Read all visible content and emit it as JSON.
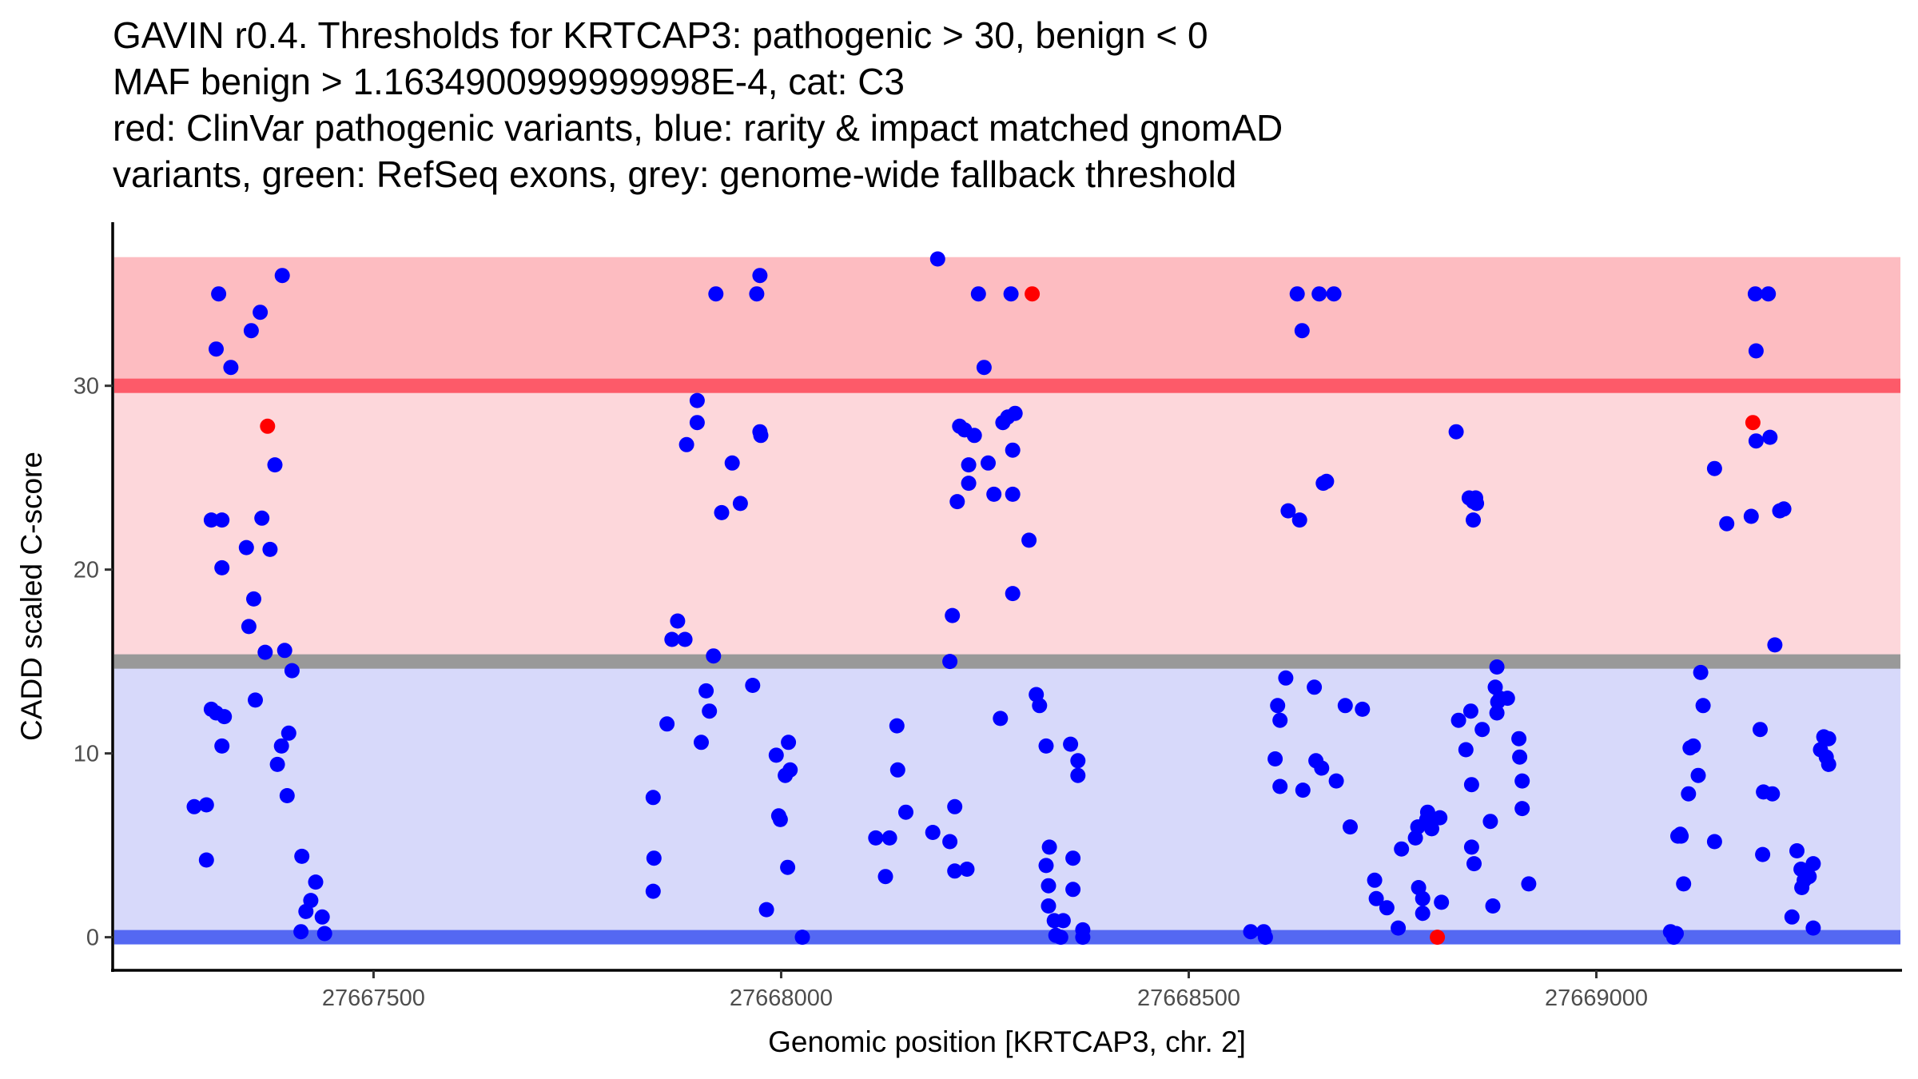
{
  "chart_data": {
    "type": "scatter",
    "title": [
      "GAVIN r0.4. Thresholds for KRTCAP3: pathogenic > 30, benign < 0",
      "MAF benign > 1.1634900999999998E-4, cat: C3",
      "red: ClinVar pathogenic variants, blue: rarity & impact matched gnomAD",
      "variants, green: RefSeq exons, grey: genome-wide fallback threshold"
    ],
    "xlabel": "Genomic position [KRTCAP3, chr. 2]",
    "ylabel": "CADD scaled C-score",
    "xlim": [
      27667180,
      27669373
    ],
    "ylim": [
      -1.8,
      38.9
    ],
    "x_ticks": [
      27667500,
      27668000,
      27668500,
      27669000
    ],
    "x_tick_labels": [
      "27667500",
      "27668000",
      "27668500",
      "27669000"
    ],
    "y_ticks": [
      0,
      10,
      20,
      30
    ],
    "y_tick_labels": [
      "0",
      "10",
      "20",
      "30"
    ],
    "grid": false,
    "legend": "none",
    "bands": [
      {
        "name": "pathogenic-region",
        "from": 30,
        "to": 37,
        "color": "#fdbcc1"
      },
      {
        "name": "intermediate-region",
        "from": 15,
        "to": 30,
        "color": "#fdd7db"
      },
      {
        "name": "benign-region",
        "from": 0,
        "to": 15,
        "color": "#d7d9fa"
      }
    ],
    "threshold_lines": [
      {
        "name": "pathogenic-threshold",
        "value": 30,
        "color": "#fd5a69"
      },
      {
        "name": "genome-wide-fallback-threshold",
        "value": 15,
        "color": "#999999"
      },
      {
        "name": "benign-threshold",
        "value": 0,
        "color": "#5468f2"
      }
    ],
    "series": [
      {
        "name": "ClinVar pathogenic variants",
        "color": "#ff0000",
        "points": [
          [
            27667370,
            27.8
          ],
          [
            27668308,
            35.0
          ],
          [
            27668805,
            0.0
          ],
          [
            27669192,
            28.0
          ]
        ]
      },
      {
        "name": "rarity & impact matched gnomAD variants",
        "color": "#0000ff",
        "points": [
          [
            27667310,
            35.0
          ],
          [
            27667307,
            32.0
          ],
          [
            27667325,
            31.0
          ],
          [
            27667350,
            33.0
          ],
          [
            27667361,
            34.0
          ],
          [
            27667388,
            36.0
          ],
          [
            27667379,
            25.7
          ],
          [
            27667301,
            22.7
          ],
          [
            27667314,
            22.7
          ],
          [
            27667363,
            22.8
          ],
          [
            27667344,
            21.2
          ],
          [
            27667373,
            21.1
          ],
          [
            27667314,
            20.1
          ],
          [
            27667353,
            18.4
          ],
          [
            27667347,
            16.9
          ],
          [
            27667367,
            15.5
          ],
          [
            27667391,
            15.6
          ],
          [
            27667400,
            14.5
          ],
          [
            27667301,
            12.4
          ],
          [
            27667307,
            12.2
          ],
          [
            27667317,
            12.0
          ],
          [
            27667355,
            12.9
          ],
          [
            27667396,
            11.1
          ],
          [
            27667387,
            10.4
          ],
          [
            27667382,
            9.4
          ],
          [
            27667314,
            10.4
          ],
          [
            27667280,
            7.1
          ],
          [
            27667295,
            7.2
          ],
          [
            27667394,
            7.7
          ],
          [
            27667295,
            4.2
          ],
          [
            27667412,
            4.4
          ],
          [
            27667429,
            3.0
          ],
          [
            27667423,
            2.0
          ],
          [
            27667417,
            1.4
          ],
          [
            27667437,
            1.1
          ],
          [
            27667411,
            0.3
          ],
          [
            27667440,
            0.2
          ],
          [
            27667843,
            7.6
          ],
          [
            27667844,
            4.3
          ],
          [
            27667843,
            2.5
          ],
          [
            27667860,
            11.6
          ],
          [
            27667866,
            16.2
          ],
          [
            27667873,
            17.2
          ],
          [
            27667882,
            16.2
          ],
          [
            27667884,
            26.8
          ],
          [
            27667897,
            29.2
          ],
          [
            27667897,
            28.0
          ],
          [
            27667908,
            13.4
          ],
          [
            27667912,
            12.3
          ],
          [
            27667902,
            10.6
          ],
          [
            27667917,
            15.3
          ],
          [
            27667920,
            35.0
          ],
          [
            27667927,
            23.1
          ],
          [
            27667940,
            25.8
          ],
          [
            27667950,
            23.6
          ],
          [
            27667965,
            13.7
          ],
          [
            27667970,
            35.0
          ],
          [
            27667974,
            36.0
          ],
          [
            27667974,
            27.5
          ],
          [
            27667975,
            27.3
          ],
          [
            27667982,
            1.5
          ],
          [
            27667994,
            9.9
          ],
          [
            27667997,
            6.6
          ],
          [
            27667999,
            6.4
          ],
          [
            27668005,
            8.8
          ],
          [
            27668009,
            10.6
          ],
          [
            27668008,
            3.8
          ],
          [
            27668011,
            9.1
          ],
          [
            27668026,
            0.0
          ],
          [
            27668116,
            5.4
          ],
          [
            27668133,
            5.4
          ],
          [
            27668128,
            3.3
          ],
          [
            27668142,
            11.5
          ],
          [
            27668143,
            9.1
          ],
          [
            27668153,
            6.8
          ],
          [
            27668186,
            5.7
          ],
          [
            27668192,
            36.9
          ],
          [
            27668207,
            5.2
          ],
          [
            27668207,
            15.0
          ],
          [
            27668210,
            17.5
          ],
          [
            27668213,
            7.1
          ],
          [
            27668213,
            3.6
          ],
          [
            27668216,
            23.7
          ],
          [
            27668219,
            27.8
          ],
          [
            27668225,
            27.6
          ],
          [
            27668228,
            3.7
          ],
          [
            27668230,
            25.7
          ],
          [
            27668230,
            24.7
          ],
          [
            27668237,
            27.3
          ],
          [
            27668242,
            35.0
          ],
          [
            27668249,
            31.0
          ],
          [
            27668254,
            25.8
          ],
          [
            27668261,
            24.1
          ],
          [
            27668269,
            11.9
          ],
          [
            27668272,
            28.0
          ],
          [
            27668278,
            28.3
          ],
          [
            27668282,
            35.0
          ],
          [
            27668284,
            26.5
          ],
          [
            27668284,
            24.1
          ],
          [
            27668284,
            18.7
          ],
          [
            27668287,
            28.5
          ],
          [
            27668304,
            21.6
          ],
          [
            27668313,
            13.2
          ],
          [
            27668317,
            12.6
          ],
          [
            27668325,
            10.4
          ],
          [
            27668329,
            4.9
          ],
          [
            27668325,
            3.9
          ],
          [
            27668328,
            2.8
          ],
          [
            27668328,
            1.7
          ],
          [
            27668335,
            0.9
          ],
          [
            27668337,
            0.1
          ],
          [
            27668343,
            0.0
          ],
          [
            27668346,
            0.9
          ],
          [
            27668355,
            10.5
          ],
          [
            27668358,
            4.3
          ],
          [
            27668358,
            2.6
          ],
          [
            27668364,
            9.6
          ],
          [
            27668364,
            8.8
          ],
          [
            27668370,
            0.4
          ],
          [
            27668370,
            0.0
          ],
          [
            27668576,
            0.3
          ],
          [
            27668592,
            0.3
          ],
          [
            27668594,
            0.0
          ],
          [
            27668606,
            9.7
          ],
          [
            27668609,
            12.6
          ],
          [
            27668612,
            11.8
          ],
          [
            27668612,
            8.2
          ],
          [
            27668619,
            14.1
          ],
          [
            27668622,
            23.2
          ],
          [
            27668633,
            35.0
          ],
          [
            27668636,
            22.7
          ],
          [
            27668639,
            33.0
          ],
          [
            27668640,
            8.0
          ],
          [
            27668654,
            13.6
          ],
          [
            27668656,
            9.6
          ],
          [
            27668660,
            35.0
          ],
          [
            27668663,
            9.2
          ],
          [
            27668665,
            24.7
          ],
          [
            27668669,
            24.8
          ],
          [
            27668678,
            35.0
          ],
          [
            27668681,
            8.5
          ],
          [
            27668692,
            12.6
          ],
          [
            27668698,
            6.0
          ],
          [
            27668713,
            12.4
          ],
          [
            27668728,
            3.1
          ],
          [
            27668730,
            2.1
          ],
          [
            27668743,
            1.6
          ],
          [
            27668757,
            0.5
          ],
          [
            27668761,
            4.8
          ],
          [
            27668778,
            5.4
          ],
          [
            27668781,
            6.0
          ],
          [
            27668782,
            2.7
          ],
          [
            27668787,
            2.1
          ],
          [
            27668787,
            1.3
          ],
          [
            27668792,
            6.4
          ],
          [
            27668793,
            6.8
          ],
          [
            27668798,
            5.9
          ],
          [
            27668808,
            6.5
          ],
          [
            27668810,
            1.9
          ],
          [
            27668828,
            27.5
          ],
          [
            27668831,
            11.8
          ],
          [
            27668840,
            10.2
          ],
          [
            27668846,
            12.3
          ],
          [
            27668844,
            23.9
          ],
          [
            27668849,
            23.7
          ],
          [
            27668847,
            8.3
          ],
          [
            27668847,
            4.9
          ],
          [
            27668849,
            22.7
          ],
          [
            27668850,
            4.0
          ],
          [
            27668852,
            23.9
          ],
          [
            27668853,
            23.6
          ],
          [
            27668860,
            11.3
          ],
          [
            27668870,
            6.3
          ],
          [
            27668873,
            1.7
          ],
          [
            27668876,
            13.6
          ],
          [
            27668878,
            14.7
          ],
          [
            27668878,
            12.2
          ],
          [
            27668879,
            12.8
          ],
          [
            27668882,
            13.0
          ],
          [
            27668891,
            13.0
          ],
          [
            27668905,
            10.8
          ],
          [
            27668906,
            9.8
          ],
          [
            27668909,
            8.5
          ],
          [
            27668909,
            7.0
          ],
          [
            27668917,
            2.9
          ],
          [
            27669091,
            0.3
          ],
          [
            27669095,
            0.0
          ],
          [
            27669098,
            0.2
          ],
          [
            27669100,
            5.5
          ],
          [
            27669104,
            5.5
          ],
          [
            27669107,
            2.9
          ],
          [
            27669103,
            5.6
          ],
          [
            27669115,
            10.3
          ],
          [
            27669119,
            10.4
          ],
          [
            27669113,
            7.8
          ],
          [
            27669125,
            8.8
          ],
          [
            27669128,
            14.4
          ],
          [
            27669131,
            12.6
          ],
          [
            27669145,
            5.2
          ],
          [
            27669145,
            25.5
          ],
          [
            27669160,
            22.5
          ],
          [
            27669190,
            22.9
          ],
          [
            27669195,
            35.0
          ],
          [
            27669196,
            31.9
          ],
          [
            27669196,
            27.0
          ],
          [
            27669201,
            11.3
          ],
          [
            27669204,
            4.5
          ],
          [
            27669205,
            7.9
          ],
          [
            27669211,
            35.0
          ],
          [
            27669213,
            27.2
          ],
          [
            27669216,
            7.8
          ],
          [
            27669219,
            15.9
          ],
          [
            27669225,
            23.2
          ],
          [
            27669230,
            23.3
          ],
          [
            27669240,
            1.1
          ],
          [
            27669246,
            4.7
          ],
          [
            27669251,
            3.7
          ],
          [
            27669252,
            2.7
          ],
          [
            27669255,
            3.1
          ],
          [
            27669261,
            3.3
          ],
          [
            27669266,
            0.5
          ],
          [
            27669266,
            4.0
          ],
          [
            27669275,
            10.2
          ],
          [
            27669279,
            10.9
          ],
          [
            27669285,
            10.8
          ],
          [
            27669282,
            9.8
          ],
          [
            27669285,
            9.4
          ]
        ]
      }
    ]
  }
}
